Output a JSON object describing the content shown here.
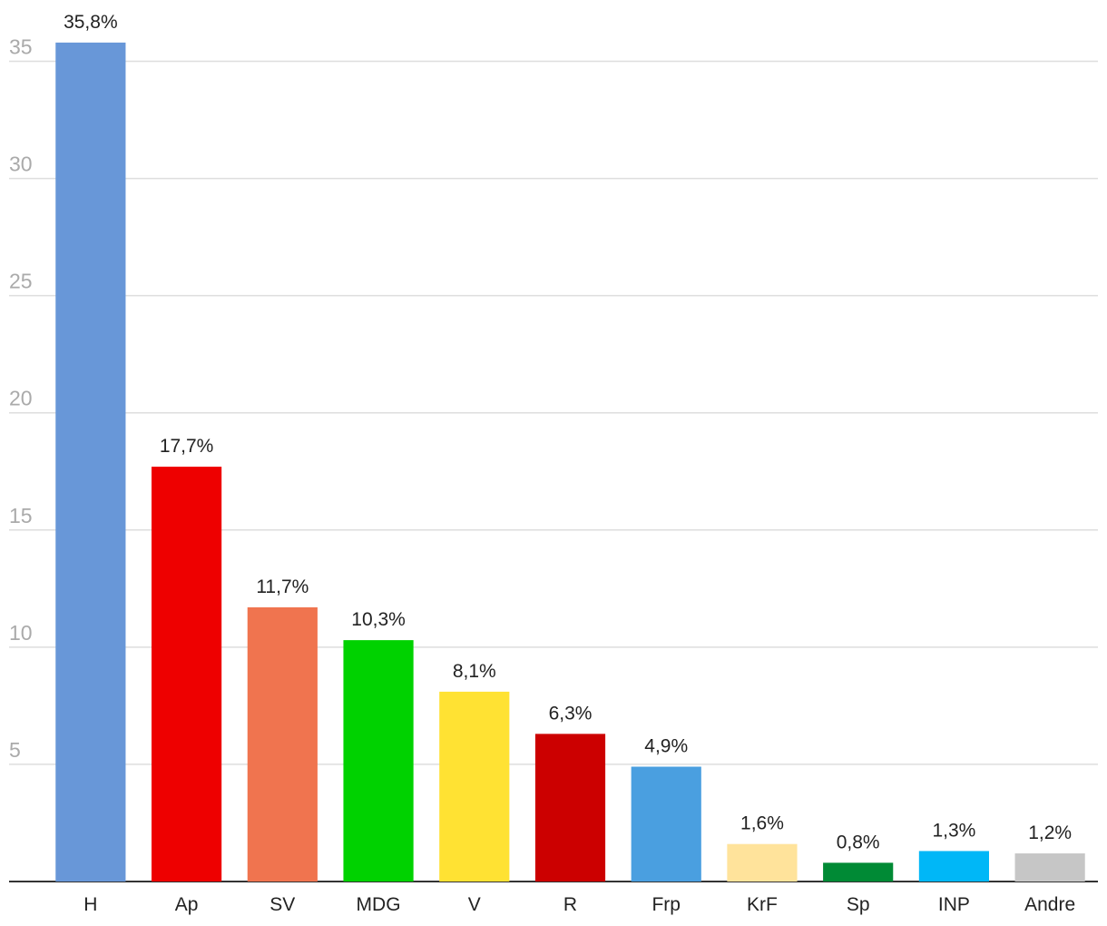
{
  "chart_data": {
    "type": "bar",
    "categories": [
      "H",
      "Ap",
      "SV",
      "MDG",
      "V",
      "R",
      "Frp",
      "KrF",
      "Sp",
      "INP",
      "Andre"
    ],
    "values": [
      35.8,
      17.7,
      11.7,
      10.3,
      8.1,
      6.3,
      4.9,
      1.6,
      0.8,
      1.3,
      1.2
    ],
    "value_labels": [
      "35,8%",
      "17,7%",
      "11,7%",
      "10,3%",
      "8,1%",
      "6,3%",
      "4,9%",
      "1,6%",
      "0,8%",
      "1,3%",
      "1,2%"
    ],
    "colors": [
      "#6897d8",
      "#ee0000",
      "#f0744f",
      "#00d200",
      "#ffe233",
      "#cc0000",
      "#4a9fe0",
      "#ffe39b",
      "#008a35",
      "#00b7f7",
      "#c6c6c6"
    ],
    "ylim": [
      0,
      37.5
    ],
    "yticks": [
      5,
      10,
      15,
      20,
      25,
      30,
      35
    ],
    "grid": true
  }
}
